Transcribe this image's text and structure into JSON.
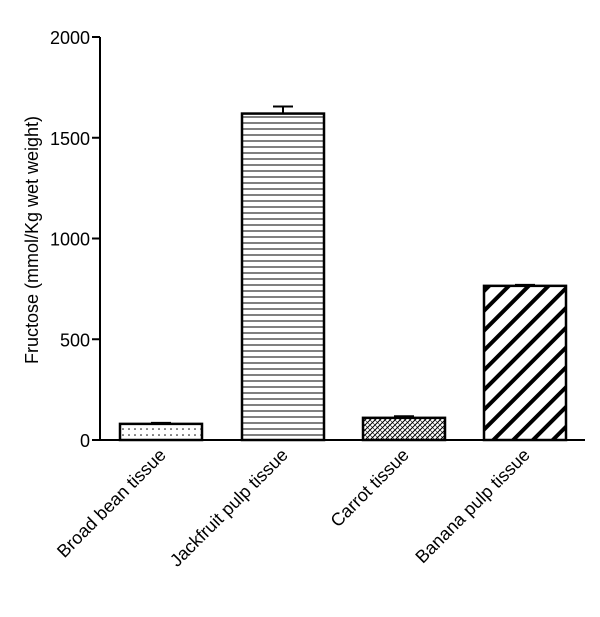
{
  "chart_data": {
    "type": "bar",
    "title": "",
    "xlabel": "",
    "ylabel": "Fructose (mmol/Kg wet weight)",
    "ylim": [
      0,
      2000
    ],
    "yticks": [
      0,
      500,
      1000,
      1500,
      2000
    ],
    "grid": false,
    "categories": [
      "Broad bean tissue",
      "Jackfruit pulp tissue",
      "Carrot tissue",
      "Banana pulp tissue"
    ],
    "values": [
      80,
      1620,
      110,
      765
    ],
    "errors": [
      5,
      35,
      8,
      5
    ],
    "patterns": [
      "dots",
      "horizontal-lines",
      "crosshatch-diagonal",
      "wide-diagonal"
    ],
    "bar_fill": "#ffffff",
    "stroke_color": "#000000"
  }
}
